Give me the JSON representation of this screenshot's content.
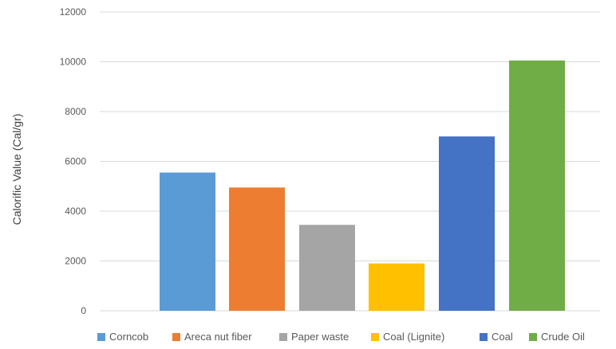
{
  "chart_data": {
    "type": "bar",
    "title": "",
    "xlabel": "",
    "ylabel": "Calorific Value (Cal/gr)",
    "ylim": [
      0,
      12000
    ],
    "yticks": [
      0,
      2000,
      4000,
      6000,
      8000,
      10000,
      12000
    ],
    "grid": true,
    "legend_position": "bottom",
    "series": [
      {
        "name": "Corncob",
        "value": 5550,
        "color": "#5b9bd5"
      },
      {
        "name": "Areca nut fiber",
        "value": 4950,
        "color": "#ed7d31"
      },
      {
        "name": "Paper waste",
        "value": 3450,
        "color": "#a5a5a5"
      },
      {
        "name": "Coal (Lignite)",
        "value": 1900,
        "color": "#ffc000"
      },
      {
        "name": "Coal",
        "value": 7000,
        "color": "#4472c4"
      },
      {
        "name": "Crude Oil",
        "value": 10050,
        "color": "#70ad47"
      }
    ]
  }
}
